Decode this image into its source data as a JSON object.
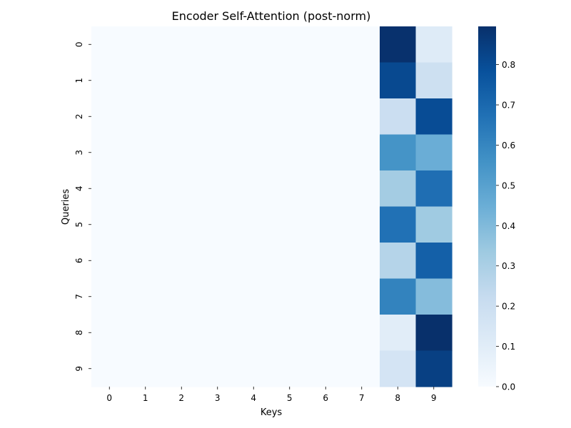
{
  "chart_data": {
    "type": "heatmap",
    "title": "Encoder Self-Attention (post-norm)",
    "xlabel": "Keys",
    "ylabel": "Queries",
    "x_categories": [
      "0",
      "1",
      "2",
      "3",
      "4",
      "5",
      "6",
      "7",
      "8",
      "9"
    ],
    "y_categories": [
      "0",
      "1",
      "2",
      "3",
      "4",
      "5",
      "6",
      "7",
      "8",
      "9"
    ],
    "values": [
      [
        0,
        0,
        0,
        0,
        0,
        0,
        0,
        0,
        0.89,
        0.11
      ],
      [
        0,
        0,
        0,
        0,
        0,
        0,
        0,
        0,
        0.81,
        0.19
      ],
      [
        0,
        0,
        0,
        0,
        0,
        0,
        0,
        0,
        0.2,
        0.8
      ],
      [
        0,
        0,
        0,
        0,
        0,
        0,
        0,
        0,
        0.55,
        0.45
      ],
      [
        0,
        0,
        0,
        0,
        0,
        0,
        0,
        0,
        0.32,
        0.68
      ],
      [
        0,
        0,
        0,
        0,
        0,
        0,
        0,
        0,
        0.67,
        0.33
      ],
      [
        0,
        0,
        0,
        0,
        0,
        0,
        0,
        0,
        0.27,
        0.73
      ],
      [
        0,
        0,
        0,
        0,
        0,
        0,
        0,
        0,
        0.61,
        0.39
      ],
      [
        0,
        0,
        0,
        0,
        0,
        0,
        0,
        0,
        0.1,
        0.9
      ],
      [
        0,
        0,
        0,
        0,
        0,
        0,
        0,
        0,
        0.16,
        0.84
      ]
    ],
    "colormap": "Blues",
    "colorbar": {
      "min": 0.0,
      "max": 0.895,
      "ticks": [
        "0.0",
        "0.1",
        "0.2",
        "0.3",
        "0.4",
        "0.5",
        "0.6",
        "0.7",
        "0.8"
      ]
    }
  }
}
